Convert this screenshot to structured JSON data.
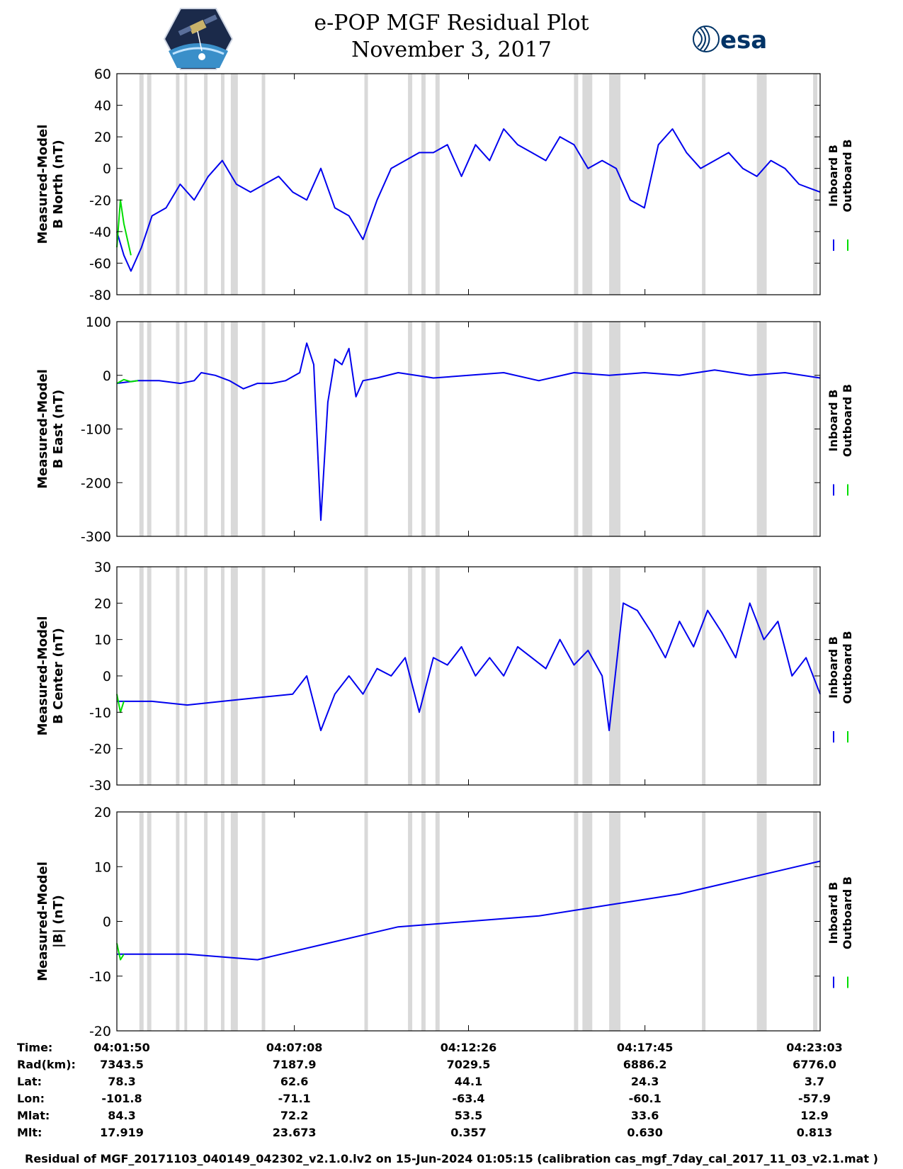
{
  "title": {
    "line1": "e-POP MGF Residual Plot",
    "line2": "November 3, 2017"
  },
  "logos": {
    "left": "cassiope-satellite-logo",
    "right_text": "esa",
    "right_color": "#003366"
  },
  "colors": {
    "inboard": "#0000ee",
    "outboard": "#00dd00",
    "shade": "#d9d9d9"
  },
  "legend": {
    "inboard": "Inboard B",
    "outboard": "Outboard B"
  },
  "chart_data": [
    {
      "type": "line",
      "ylabel": [
        "Measured-Model",
        "B North (nT)"
      ],
      "ylim": [
        -80,
        60
      ],
      "yticks": [
        60,
        40,
        20,
        0,
        -20,
        -40,
        -60,
        -80
      ],
      "ytick_labels": [
        "60",
        "40",
        "20",
        "0",
        "-20",
        "-40",
        "-60",
        "-80"
      ],
      "series": [
        {
          "name": "Inboard B",
          "x": [
            0,
            0.01,
            0.02,
            0.035,
            0.05,
            0.07,
            0.09,
            0.11,
            0.13,
            0.15,
            0.17,
            0.19,
            0.21,
            0.23,
            0.25,
            0.27,
            0.29,
            0.31,
            0.33,
            0.35,
            0.37,
            0.39,
            0.41,
            0.43,
            0.45,
            0.47,
            0.49,
            0.51,
            0.53,
            0.55,
            0.57,
            0.59,
            0.61,
            0.63,
            0.65,
            0.67,
            0.69,
            0.71,
            0.73,
            0.75,
            0.77,
            0.79,
            0.81,
            0.83,
            0.85,
            0.87,
            0.89,
            0.91,
            0.93,
            0.95,
            0.97,
            1.0
          ],
          "values": [
            -40,
            -55,
            -65,
            -50,
            -30,
            -25,
            -10,
            -20,
            -5,
            5,
            -10,
            -15,
            -10,
            -5,
            -15,
            -20,
            0,
            -25,
            -30,
            -45,
            -20,
            0,
            5,
            10,
            10,
            15,
            -5,
            15,
            5,
            25,
            15,
            10,
            5,
            20,
            15,
            0,
            5,
            0,
            -20,
            -25,
            15,
            25,
            10,
            0,
            5,
            10,
            0,
            -5,
            5,
            0,
            -10,
            -15
          ]
        },
        {
          "name": "Outboard B",
          "x": [
            0,
            0.005,
            0.01,
            0.015,
            0.02
          ],
          "values": [
            -50,
            -20,
            -35,
            -45,
            -55
          ]
        }
      ]
    },
    {
      "type": "line",
      "ylabel": [
        "Measured-Model",
        "B East (nT)"
      ],
      "ylim": [
        -300,
        100
      ],
      "yticks": [
        100,
        0,
        -100,
        -200,
        -300
      ],
      "ytick_labels": [
        "100",
        "0",
        "-100",
        "-200",
        "-300"
      ],
      "series": [
        {
          "name": "Inboard B",
          "x": [
            0,
            0.03,
            0.06,
            0.09,
            0.11,
            0.12,
            0.14,
            0.16,
            0.18,
            0.2,
            0.22,
            0.24,
            0.26,
            0.27,
            0.28,
            0.29,
            0.3,
            0.31,
            0.32,
            0.33,
            0.34,
            0.35,
            0.37,
            0.4,
            0.45,
            0.5,
            0.55,
            0.6,
            0.65,
            0.7,
            0.75,
            0.8,
            0.85,
            0.9,
            0.95,
            1.0
          ],
          "values": [
            -15,
            -10,
            -10,
            -15,
            -10,
            5,
            0,
            -10,
            -25,
            -15,
            -15,
            -10,
            5,
            60,
            20,
            -270,
            -50,
            30,
            20,
            50,
            -40,
            -10,
            -5,
            5,
            -5,
            0,
            5,
            -10,
            5,
            0,
            5,
            0,
            10,
            0,
            5,
            -5
          ]
        },
        {
          "name": "Outboard B",
          "x": [
            0,
            0.01,
            0.02,
            0.03
          ],
          "values": [
            -15,
            -8,
            -12,
            -10
          ]
        }
      ]
    },
    {
      "type": "line",
      "ylabel": [
        "Measured-Model",
        "B Center (nT)"
      ],
      "ylim": [
        -30,
        30
      ],
      "yticks": [
        30,
        20,
        10,
        0,
        -10,
        -20,
        -30
      ],
      "ytick_labels": [
        "30",
        "20",
        "10",
        "0",
        "-10",
        "-20",
        "-30"
      ],
      "series": [
        {
          "name": "Inboard B",
          "x": [
            0,
            0.05,
            0.1,
            0.15,
            0.2,
            0.25,
            0.27,
            0.29,
            0.31,
            0.33,
            0.35,
            0.37,
            0.39,
            0.41,
            0.43,
            0.45,
            0.47,
            0.49,
            0.51,
            0.53,
            0.55,
            0.57,
            0.59,
            0.61,
            0.63,
            0.65,
            0.67,
            0.69,
            0.7,
            0.72,
            0.74,
            0.76,
            0.78,
            0.8,
            0.82,
            0.84,
            0.86,
            0.88,
            0.9,
            0.92,
            0.94,
            0.96,
            0.98,
            1.0
          ],
          "values": [
            -7,
            -7,
            -8,
            -7,
            -6,
            -5,
            0,
            -15,
            -5,
            0,
            -5,
            2,
            0,
            5,
            -10,
            5,
            3,
            8,
            0,
            5,
            0,
            8,
            5,
            2,
            10,
            3,
            7,
            0,
            -15,
            20,
            18,
            12,
            5,
            15,
            8,
            18,
            12,
            5,
            20,
            10,
            15,
            0,
            5,
            -5
          ]
        },
        {
          "name": "Outboard B",
          "x": [
            0,
            0.005,
            0.01
          ],
          "values": [
            -5,
            -10,
            -7
          ]
        }
      ]
    },
    {
      "type": "line",
      "ylabel": [
        "Measured-Model",
        "|B| (nT)"
      ],
      "ylim": [
        -20,
        20
      ],
      "yticks": [
        20,
        10,
        0,
        -10,
        -20
      ],
      "ytick_labels": [
        "20",
        "10",
        "0",
        "-10",
        "-20"
      ],
      "series": [
        {
          "name": "Inboard B",
          "x": [
            0,
            0.1,
            0.2,
            0.3,
            0.4,
            0.5,
            0.6,
            0.7,
            0.8,
            0.9,
            1.0
          ],
          "values": [
            -6,
            -6,
            -7,
            -4,
            -1,
            0,
            1,
            3,
            5,
            8,
            11
          ]
        },
        {
          "name": "Outboard B",
          "x": [
            0,
            0.005,
            0.01
          ],
          "values": [
            -4,
            -7,
            -6
          ]
        }
      ]
    }
  ],
  "shaded_intervals": [
    [
      0.032,
      0.038
    ],
    [
      0.043,
      0.049
    ],
    [
      0.084,
      0.089
    ],
    [
      0.096,
      0.1
    ],
    [
      0.124,
      0.129
    ],
    [
      0.148,
      0.153
    ],
    [
      0.162,
      0.172
    ],
    [
      0.206,
      0.211
    ],
    [
      0.352,
      0.357
    ],
    [
      0.414,
      0.42
    ],
    [
      0.433,
      0.439
    ],
    [
      0.453,
      0.459
    ],
    [
      0.65,
      0.656
    ],
    [
      0.662,
      0.676
    ],
    [
      0.7,
      0.716
    ],
    [
      0.832,
      0.837
    ],
    [
      0.91,
      0.924
    ],
    [
      0.99,
      0.996
    ]
  ],
  "x_ticks": [
    0,
    0.2524,
    0.5,
    0.7509,
    1.0
  ],
  "info_table": {
    "labels": [
      "Time:",
      "Rad(km):",
      "Lat:",
      "Lon:",
      "Mlat:",
      "Mlt:"
    ],
    "columns": [
      [
        "04:01:50",
        "7343.5",
        "78.3",
        "-101.8",
        "84.3",
        "17.919"
      ],
      [
        "04:07:08",
        "7187.9",
        "62.6",
        "-71.1",
        "72.2",
        "23.673"
      ],
      [
        "04:12:26",
        "7029.5",
        "44.1",
        "-63.4",
        "53.5",
        "0.357"
      ],
      [
        "04:17:45",
        "6886.2",
        "24.3",
        "-60.1",
        "33.6",
        "0.630"
      ],
      [
        "04:23:03",
        "6776.0",
        "3.7",
        "-57.9",
        "12.9",
        "0.813"
      ]
    ]
  },
  "footer": "Residual of MGF_20171103_040149_042302_v2.1.0.lv2 on 15-Jun-2024 01:05:15 (calibration cas_mgf_7day_cal_2017_11_03_v2.1.mat )"
}
